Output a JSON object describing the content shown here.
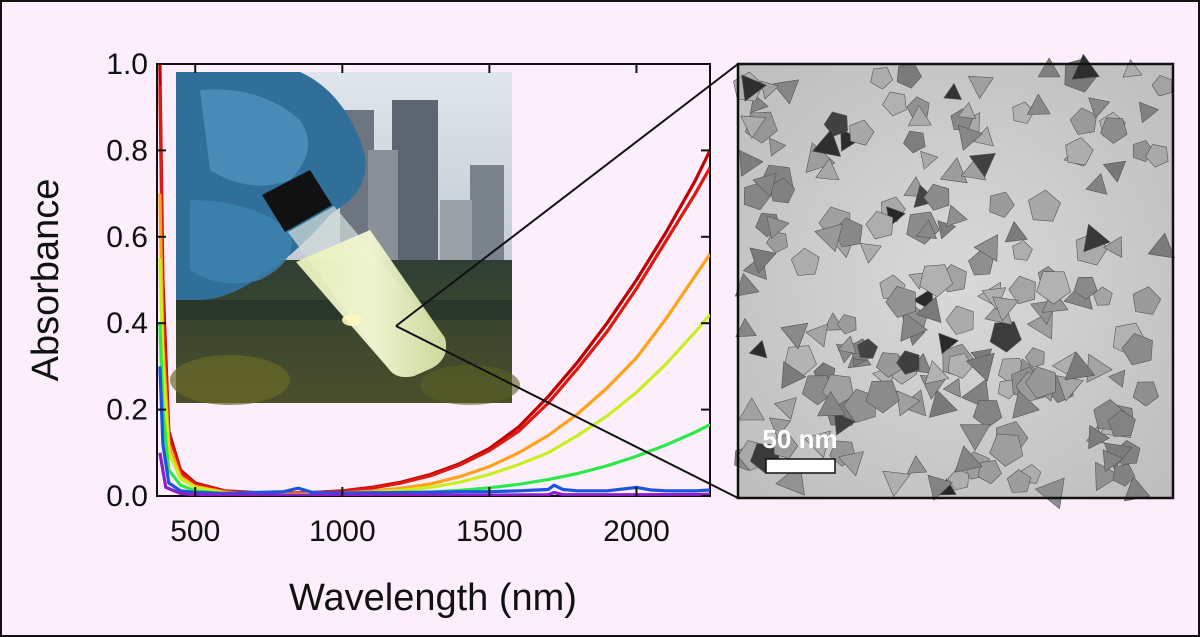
{
  "chart_data": {
    "type": "line",
    "xlabel": "Wavelength (nm)",
    "ylabel": "Absorbance",
    "xlim": [
      370,
      2250
    ],
    "ylim": [
      0,
      1.0
    ],
    "x_ticks": [
      500,
      1000,
      1500,
      2000
    ],
    "x_tick_labels": [
      "500",
      "1000",
      "1500",
      "2000"
    ],
    "y_ticks": [
      0,
      0.2,
      0.4,
      0.6,
      0.8,
      1.0
    ],
    "y_tick_labels": [
      "0.0",
      "0.2",
      "0.4",
      "0.6",
      "0.8",
      "1.0"
    ],
    "grid": false,
    "series": [
      {
        "color": "#c00000",
        "x": [
          380,
          390,
          410,
          450,
          500,
          600,
          700,
          800,
          900,
          1000,
          1100,
          1200,
          1300,
          1400,
          1500,
          1600,
          1700,
          1800,
          1900,
          2000,
          2100,
          2200,
          2250
        ],
        "y": [
          1.0,
          0.5,
          0.15,
          0.06,
          0.03,
          0.012,
          0.008,
          0.006,
          0.008,
          0.012,
          0.02,
          0.032,
          0.05,
          0.075,
          0.11,
          0.16,
          0.23,
          0.31,
          0.4,
          0.5,
          0.61,
          0.73,
          0.8
        ]
      },
      {
        "color": "#dd1a10",
        "x": [
          380,
          390,
          410,
          450,
          500,
          600,
          700,
          800,
          900,
          1000,
          1100,
          1200,
          1300,
          1400,
          1500,
          1600,
          1700,
          1800,
          1900,
          2000,
          2100,
          2200,
          2250
        ],
        "y": [
          0.95,
          0.45,
          0.14,
          0.055,
          0.028,
          0.011,
          0.007,
          0.006,
          0.008,
          0.011,
          0.018,
          0.03,
          0.047,
          0.072,
          0.105,
          0.15,
          0.215,
          0.295,
          0.38,
          0.48,
          0.59,
          0.7,
          0.76
        ]
      },
      {
        "color": "#ffa21a",
        "x": [
          380,
          390,
          410,
          450,
          500,
          600,
          700,
          800,
          900,
          1000,
          1100,
          1200,
          1300,
          1400,
          1500,
          1600,
          1700,
          1800,
          1900,
          2000,
          2100,
          2200,
          2250
        ],
        "y": [
          0.7,
          0.35,
          0.12,
          0.045,
          0.022,
          0.009,
          0.005,
          0.004,
          0.005,
          0.007,
          0.011,
          0.018,
          0.028,
          0.045,
          0.068,
          0.1,
          0.14,
          0.19,
          0.25,
          0.32,
          0.41,
          0.51,
          0.56
        ]
      },
      {
        "color": "#c8f020",
        "x": [
          380,
          390,
          410,
          450,
          500,
          600,
          700,
          800,
          900,
          1000,
          1100,
          1200,
          1300,
          1400,
          1500,
          1600,
          1700,
          1800,
          1900,
          2000,
          2100,
          2200,
          2250
        ],
        "y": [
          0.55,
          0.3,
          0.1,
          0.04,
          0.02,
          0.007,
          0.004,
          0.003,
          0.004,
          0.005,
          0.008,
          0.013,
          0.02,
          0.032,
          0.05,
          0.073,
          0.1,
          0.14,
          0.185,
          0.24,
          0.305,
          0.38,
          0.42
        ]
      },
      {
        "color": "#2ee84a",
        "x": [
          380,
          390,
          410,
          450,
          500,
          600,
          700,
          800,
          900,
          1000,
          1100,
          1200,
          1300,
          1400,
          1500,
          1600,
          1700,
          1800,
          1900,
          2000,
          2100,
          2200,
          2250
        ],
        "y": [
          0.4,
          0.2,
          0.06,
          0.025,
          0.012,
          0.005,
          0.003,
          0.002,
          0.002,
          0.003,
          0.004,
          0.006,
          0.009,
          0.013,
          0.019,
          0.027,
          0.038,
          0.052,
          0.07,
          0.092,
          0.118,
          0.148,
          0.165
        ]
      },
      {
        "color": "#1a55e0",
        "x": [
          380,
          390,
          410,
          450,
          500,
          600,
          700,
          800,
          850,
          900,
          1000,
          1200,
          1400,
          1500,
          1600,
          1700,
          1720,
          1750,
          1800,
          1900,
          2000,
          2050,
          2100,
          2200,
          2250
        ],
        "y": [
          0.3,
          0.12,
          0.03,
          0.012,
          0.008,
          0.006,
          0.008,
          0.01,
          0.018,
          0.008,
          0.007,
          0.008,
          0.01,
          0.01,
          0.012,
          0.015,
          0.025,
          0.015,
          0.012,
          0.012,
          0.02,
          0.014,
          0.012,
          0.012,
          0.014
        ]
      },
      {
        "color": "#8a20c8",
        "x": [
          380,
          400,
          450,
          500,
          700,
          1000,
          1500,
          1700,
          1720,
          1750,
          2000,
          2250
        ],
        "y": [
          0.1,
          0.02,
          0.006,
          0.003,
          0.002,
          0.002,
          0.002,
          0.003,
          0.008,
          0.003,
          0.003,
          0.004
        ]
      }
    ]
  },
  "inset_photo": {
    "label": ""
  },
  "tem_image": {
    "scale_bar_label": "50 nm"
  }
}
